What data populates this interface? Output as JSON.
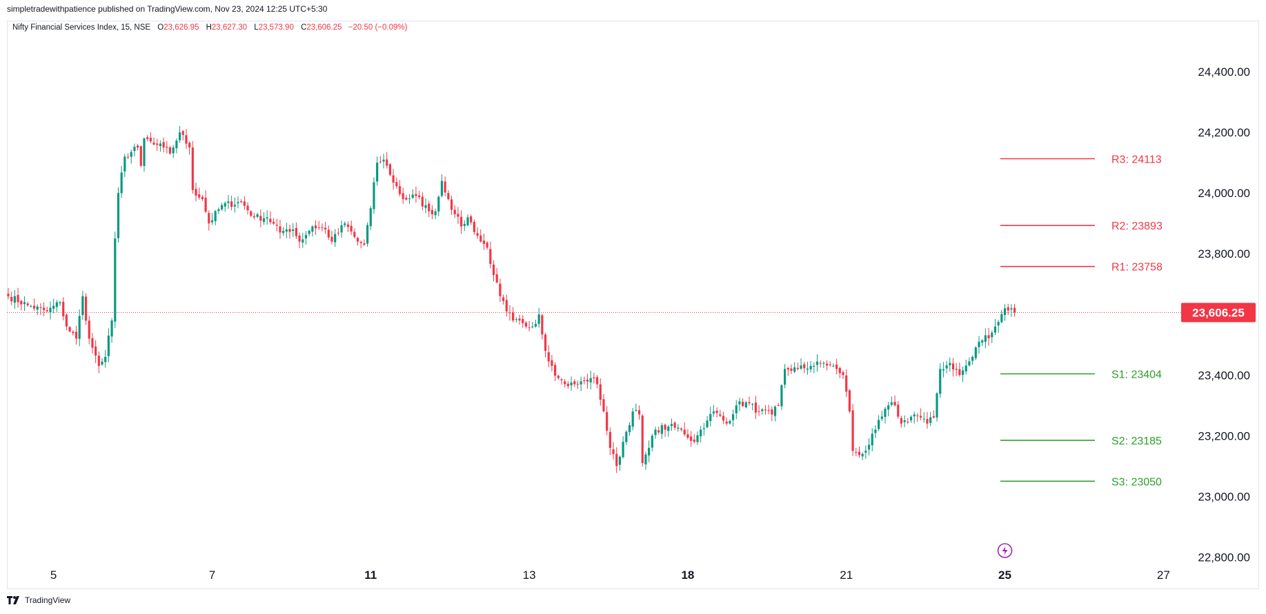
{
  "header": {
    "published": "simpletradewithpatience published on TradingView.com, Nov 23, 2024 12:25 UTC+5:30"
  },
  "legend": {
    "symbol": "Nifty Financial Services Index, 15, NSE",
    "o_label": "O",
    "o_value": "23,626.95",
    "h_label": "H",
    "h_value": "23,627.30",
    "l_label": "L",
    "l_value": "23,573.90",
    "c_label": "C",
    "c_value": "23,606.25",
    "change": "−20.50 (−0.09%)"
  },
  "footer": {
    "brand": "TradingView"
  },
  "colors": {
    "up": "#089981",
    "down": "#f23645",
    "resistance": "#f23645",
    "support": "#2ba02b"
  },
  "chart_data": {
    "type": "candlestick",
    "ylim": [
      22760,
      24500
    ],
    "y_ticks": [
      "24,400.00",
      "24,200.00",
      "24,000.00",
      "23,800.00",
      "23,400.00",
      "23,200.00",
      "23,000.00",
      "22,800.00"
    ],
    "y_tick_values": [
      24400,
      24200,
      24000,
      23800,
      23400,
      23200,
      23000,
      22800
    ],
    "x_ticks": [
      {
        "label": "5",
        "bar": 14,
        "bold": false
      },
      {
        "label": "7",
        "bar": 63,
        "bold": false
      },
      {
        "label": "11",
        "bar": 112,
        "bold": true
      },
      {
        "label": "13",
        "bar": 161,
        "bold": false
      },
      {
        "label": "18",
        "bar": 210,
        "bold": true
      },
      {
        "label": "21",
        "bar": 259,
        "bold": false
      },
      {
        "label": "25",
        "bar": 308,
        "bold": true
      },
      {
        "label": "27",
        "bar": 357,
        "bold": false
      }
    ],
    "last_price": 23606.25,
    "last_price_label": "23,606.25",
    "levels": [
      {
        "label": "R3: 24113",
        "value": 24113,
        "kind": "resistance"
      },
      {
        "label": "R2: 23893",
        "value": 23893,
        "kind": "resistance"
      },
      {
        "label": "R1: 23758",
        "value": 23758,
        "kind": "resistance"
      },
      {
        "label": "S1: 23404",
        "value": 23404,
        "kind": "support"
      },
      {
        "label": "S2: 23185",
        "value": 23185,
        "kind": "support"
      },
      {
        "label": "S3: 23050",
        "value": 23050,
        "kind": "support"
      }
    ],
    "anchors": [
      [
        0,
        23660
      ],
      [
        6,
        23630
      ],
      [
        12,
        23610
      ],
      [
        16,
        23640
      ],
      [
        18,
        23560
      ],
      [
        21,
        23520
      ],
      [
        23,
        23660
      ],
      [
        25,
        23520
      ],
      [
        26,
        23490
      ],
      [
        28,
        23430
      ],
      [
        30,
        23460
      ],
      [
        32,
        23580
      ],
      [
        33,
        23850
      ],
      [
        34,
        24000
      ],
      [
        36,
        24120
      ],
      [
        40,
        24150
      ],
      [
        41,
        24090
      ],
      [
        42,
        24180
      ],
      [
        45,
        24160
      ],
      [
        48,
        24150
      ],
      [
        50,
        24130
      ],
      [
        53,
        24200
      ],
      [
        56,
        24150
      ],
      [
        57,
        24010
      ],
      [
        60,
        23980
      ],
      [
        62,
        23900
      ],
      [
        66,
        23960
      ],
      [
        72,
        23970
      ],
      [
        76,
        23920
      ],
      [
        80,
        23920
      ],
      [
        84,
        23870
      ],
      [
        86,
        23880
      ],
      [
        88,
        23880
      ],
      [
        90,
        23840
      ],
      [
        94,
        23890
      ],
      [
        98,
        23880
      ],
      [
        100,
        23840
      ],
      [
        104,
        23900
      ],
      [
        108,
        23840
      ],
      [
        110,
        23830
      ],
      [
        112,
        23950
      ],
      [
        114,
        24100
      ],
      [
        116,
        24110
      ],
      [
        118,
        24060
      ],
      [
        122,
        23980
      ],
      [
        126,
        23990
      ],
      [
        130,
        23940
      ],
      [
        132,
        23940
      ],
      [
        134,
        24040
      ],
      [
        136,
        23980
      ],
      [
        138,
        23930
      ],
      [
        140,
        23890
      ],
      [
        142,
        23920
      ],
      [
        146,
        23840
      ],
      [
        148,
        23820
      ],
      [
        150,
        23730
      ],
      [
        152,
        23660
      ],
      [
        154,
        23610
      ],
      [
        156,
        23580
      ],
      [
        160,
        23560
      ],
      [
        162,
        23560
      ],
      [
        164,
        23600
      ],
      [
        166,
        23480
      ],
      [
        168,
        23430
      ],
      [
        170,
        23390
      ],
      [
        172,
        23370
      ],
      [
        176,
        23370
      ],
      [
        178,
        23380
      ],
      [
        180,
        23390
      ],
      [
        182,
        23370
      ],
      [
        184,
        23280
      ],
      [
        186,
        23160
      ],
      [
        188,
        23100
      ],
      [
        190,
        23180
      ],
      [
        193,
        23280
      ],
      [
        195,
        23270
      ],
      [
        196,
        23110
      ],
      [
        198,
        23160
      ],
      [
        200,
        23220
      ],
      [
        204,
        23230
      ],
      [
        208,
        23220
      ],
      [
        212,
        23180
      ],
      [
        214,
        23220
      ],
      [
        216,
        23250
      ],
      [
        218,
        23280
      ],
      [
        222,
        23240
      ],
      [
        225,
        23300
      ],
      [
        228,
        23310
      ],
      [
        232,
        23280
      ],
      [
        236,
        23270
      ],
      [
        238,
        23300
      ],
      [
        240,
        23420
      ],
      [
        244,
        23420
      ],
      [
        248,
        23430
      ],
      [
        252,
        23440
      ],
      [
        256,
        23420
      ],
      [
        258,
        23400
      ],
      [
        260,
        23280
      ],
      [
        261,
        23150
      ],
      [
        264,
        23140
      ],
      [
        266,
        23170
      ],
      [
        268,
        23220
      ],
      [
        272,
        23300
      ],
      [
        274,
        23300
      ],
      [
        276,
        23240
      ],
      [
        280,
        23270
      ],
      [
        282,
        23260
      ],
      [
        284,
        23240
      ],
      [
        286,
        23260
      ],
      [
        288,
        23420
      ],
      [
        291,
        23440
      ],
      [
        294,
        23400
      ],
      [
        298,
        23460
      ],
      [
        300,
        23510
      ],
      [
        304,
        23540
      ],
      [
        305,
        23560
      ],
      [
        308,
        23620
      ],
      [
        310,
        23620
      ],
      [
        311,
        23606
      ]
    ]
  }
}
